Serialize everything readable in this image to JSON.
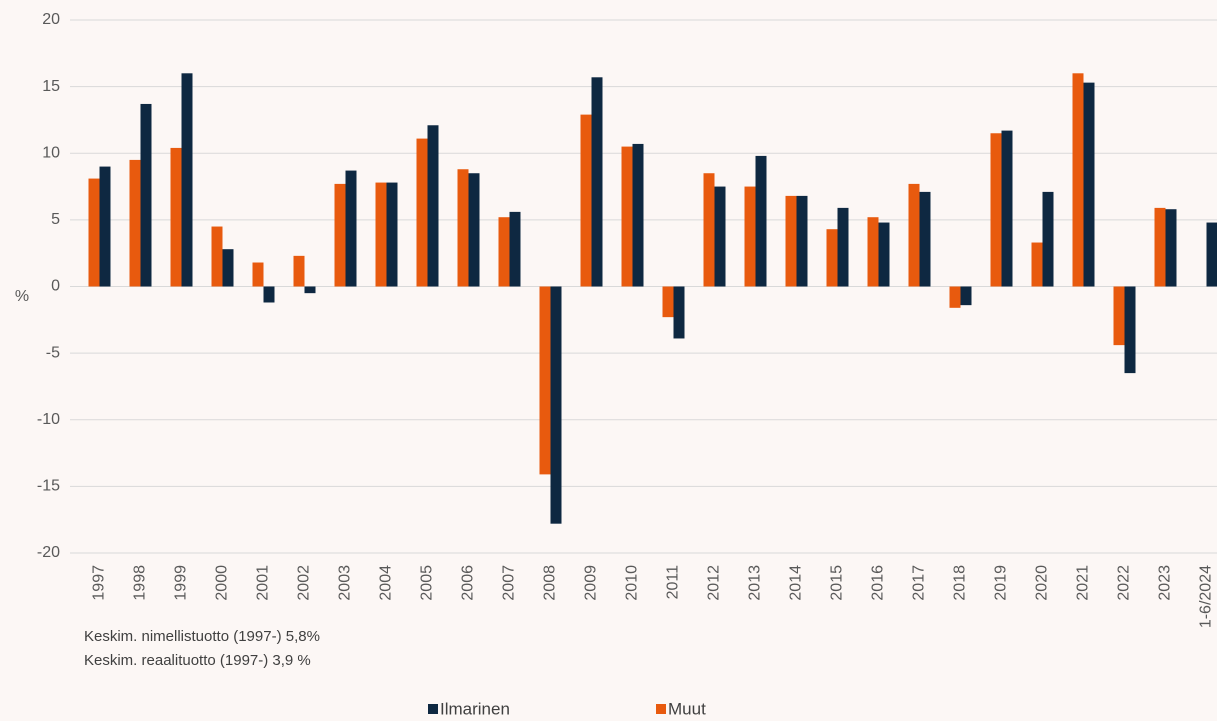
{
  "chart_data": {
    "type": "bar",
    "categories": [
      "1997",
      "1998",
      "1999",
      "2000",
      "2001",
      "2002",
      "2003",
      "2004",
      "2005",
      "2006",
      "2007",
      "2008",
      "2009",
      "2010",
      "2011",
      "2012",
      "2013",
      "2014",
      "2015",
      "2016",
      "2017",
      "2018",
      "2019",
      "2020",
      "2021",
      "2022",
      "2023",
      "1-6/2024"
    ],
    "series": [
      {
        "name": "Ilmarinen",
        "color": "#0e2841",
        "values": [
          9.0,
          13.7,
          16.0,
          2.8,
          -1.2,
          -0.5,
          8.7,
          7.8,
          12.1,
          8.5,
          5.6,
          -17.8,
          15.7,
          10.7,
          -3.9,
          7.5,
          9.8,
          6.8,
          5.9,
          4.8,
          7.1,
          -1.4,
          11.7,
          7.1,
          15.3,
          -6.5,
          5.8,
          4.8
        ]
      },
      {
        "name": "Muut",
        "color": "#e85a0e",
        "values": [
          8.1,
          9.5,
          10.4,
          4.5,
          1.8,
          2.3,
          7.7,
          7.8,
          11.1,
          8.8,
          5.2,
          -14.1,
          12.9,
          10.5,
          -2.3,
          8.5,
          7.5,
          6.8,
          4.3,
          5.2,
          7.7,
          -1.6,
          11.5,
          3.3,
          16.0,
          -4.4,
          5.9,
          null
        ]
      }
    ],
    "ylabel": "%",
    "ylim": [
      -20,
      20
    ],
    "yticks": [
      -20,
      -15,
      -10,
      -5,
      0,
      5,
      10,
      15,
      20
    ],
    "grid": true,
    "annotations": [
      "Keskim. nimellistuotto (1997-) 5,8%",
      "Keskim. reaalituotto (1997-) 3,9 %"
    ],
    "legend": "bottom"
  }
}
